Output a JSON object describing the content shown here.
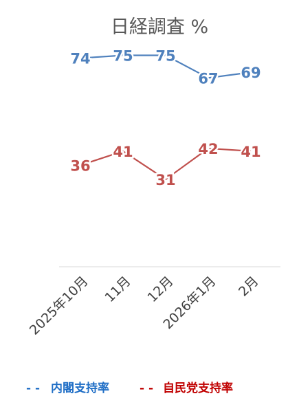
{
  "chart_data": {
    "type": "line",
    "title": "日経調査 %",
    "categories": [
      "2025年10月",
      "11月",
      "12月",
      "2026年1月",
      "2月"
    ],
    "series": [
      {
        "name": "内閣支持率",
        "values": [
          74,
          75,
          75,
          67,
          69
        ],
        "color": "#4F81BD",
        "legend_color": "#1F6EC6"
      },
      {
        "name": "自民党支持率",
        "values": [
          36,
          41,
          31,
          42,
          41
        ],
        "color": "#C0504D",
        "legend_color": "#C00000"
      }
    ],
    "ylim": [
      0,
      90
    ],
    "grid": false,
    "legend": "bottom",
    "legend_marker": "- -",
    "data_labels": true
  }
}
